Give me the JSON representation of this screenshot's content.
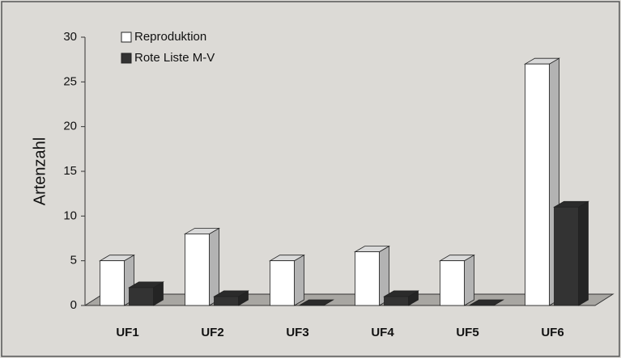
{
  "chart_data": {
    "type": "bar3d",
    "ylabel": "Artenzahl",
    "categories": [
      "UF1",
      "UF2",
      "UF3",
      "UF4",
      "UF5",
      "UF6"
    ],
    "series": [
      {
        "name": "Reproduktion",
        "color": "#ffffff",
        "values": [
          5,
          8,
          5,
          6,
          5,
          27
        ]
      },
      {
        "name": "Rote Liste M-V",
        "color": "#333333",
        "values": [
          2,
          1,
          0,
          1,
          0,
          11
        ]
      }
    ],
    "ylim": [
      0,
      30
    ],
    "yticks": [
      0,
      5,
      10,
      15,
      20,
      25,
      30
    ],
    "legend": "top-left"
  }
}
